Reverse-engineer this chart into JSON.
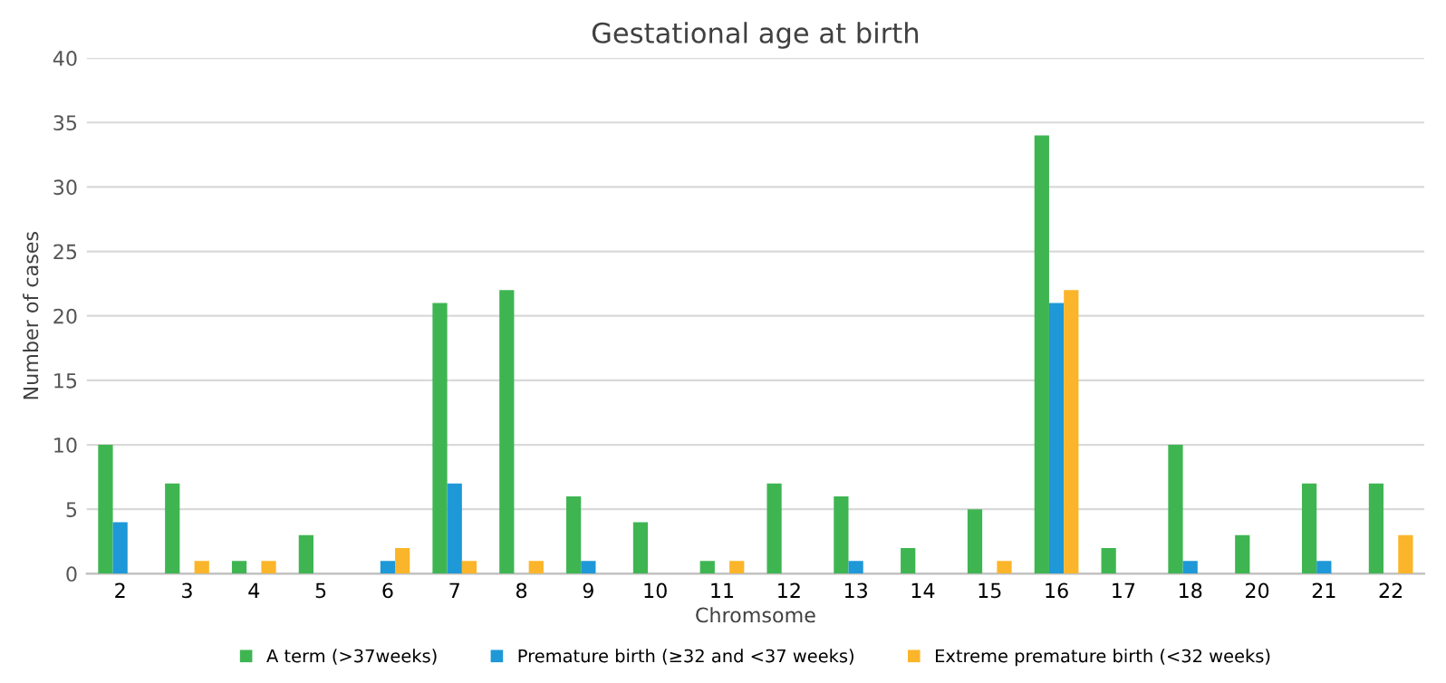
{
  "chart_data": {
    "type": "bar",
    "title": "Gestational age at birth",
    "xlabel": "Chromsome",
    "ylabel": "Number of cases",
    "categories": [
      "2",
      "3",
      "4",
      "5",
      "6",
      "7",
      "8",
      "9",
      "10",
      "11",
      "12",
      "13",
      "14",
      "15",
      "16",
      "17",
      "18",
      "20",
      "21",
      "22"
    ],
    "series": [
      {
        "name": "A term (>37weeks)",
        "color": "#3fb552",
        "values": [
          10,
          7,
          1,
          3,
          0,
          21,
          22,
          6,
          4,
          1,
          7,
          6,
          2,
          5,
          34,
          2,
          10,
          3,
          7,
          7
        ]
      },
      {
        "name": "Premature birth (≥32 and <37 weeks)",
        "color": "#1e98d7",
        "values": [
          4,
          0,
          0,
          0,
          1,
          7,
          0,
          1,
          0,
          0,
          0,
          1,
          0,
          0,
          21,
          0,
          1,
          0,
          1,
          0
        ]
      },
      {
        "name": "Extreme premature birth (<32 weeks)",
        "color": "#fbb52a",
        "values": [
          0,
          1,
          1,
          0,
          2,
          1,
          1,
          0,
          0,
          1,
          0,
          0,
          0,
          1,
          22,
          0,
          0,
          0,
          0,
          3
        ]
      }
    ],
    "ylim": [
      0,
      40
    ],
    "yticks": [
      0,
      5,
      10,
      15,
      20,
      25,
      30,
      35,
      40
    ],
    "grid": "y",
    "legend": "bottom"
  }
}
